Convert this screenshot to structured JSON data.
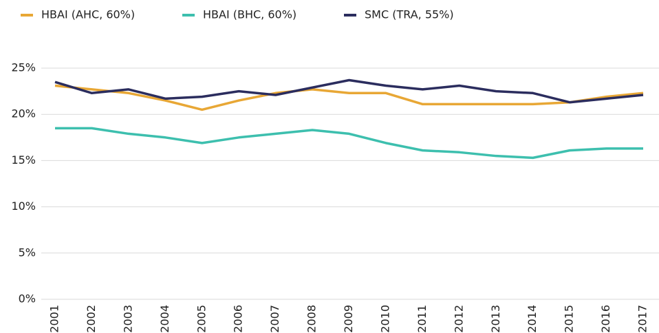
{
  "chart_data": {
    "type": "line",
    "categories": [
      "2001",
      "2002",
      "2003",
      "2004",
      "2005",
      "2006",
      "2007",
      "2008",
      "2009",
      "2010",
      "2011",
      "2012",
      "2013",
      "2014",
      "2015",
      "2016",
      "2017"
    ],
    "series": [
      {
        "name": "HBAI (AHC, 60%)",
        "color": "#e8a735",
        "values": [
          23.1,
          22.7,
          22.3,
          21.5,
          20.5,
          21.5,
          22.3,
          22.7,
          22.3,
          22.3,
          21.1,
          21.1,
          21.1,
          21.1,
          21.3,
          21.9,
          22.3
        ]
      },
      {
        "name": "HBAI (BHC, 60%)",
        "color": "#3dbfae",
        "values": [
          18.5,
          18.5,
          17.9,
          17.5,
          16.9,
          17.5,
          17.9,
          18.3,
          17.9,
          16.9,
          16.1,
          15.9,
          15.5,
          15.3,
          16.1,
          16.3,
          16.3
        ]
      },
      {
        "name": "SMC (TRA, 55%)",
        "color": "#2b2d5e",
        "values": [
          23.5,
          22.3,
          22.7,
          21.7,
          21.9,
          22.5,
          22.1,
          22.9,
          23.7,
          23.1,
          22.7,
          23.1,
          22.5,
          22.3,
          21.3,
          21.7,
          22.1
        ]
      }
    ],
    "ylim": [
      0,
      25
    ],
    "yticks": [
      {
        "value": 0,
        "label": "0%"
      },
      {
        "value": 5,
        "label": "5%"
      },
      {
        "value": 10,
        "label": "10%"
      },
      {
        "value": 15,
        "label": "15%"
      },
      {
        "value": 20,
        "label": "20%"
      },
      {
        "value": 25,
        "label": "25%"
      }
    ],
    "grid": true,
    "legend": "top-left"
  }
}
